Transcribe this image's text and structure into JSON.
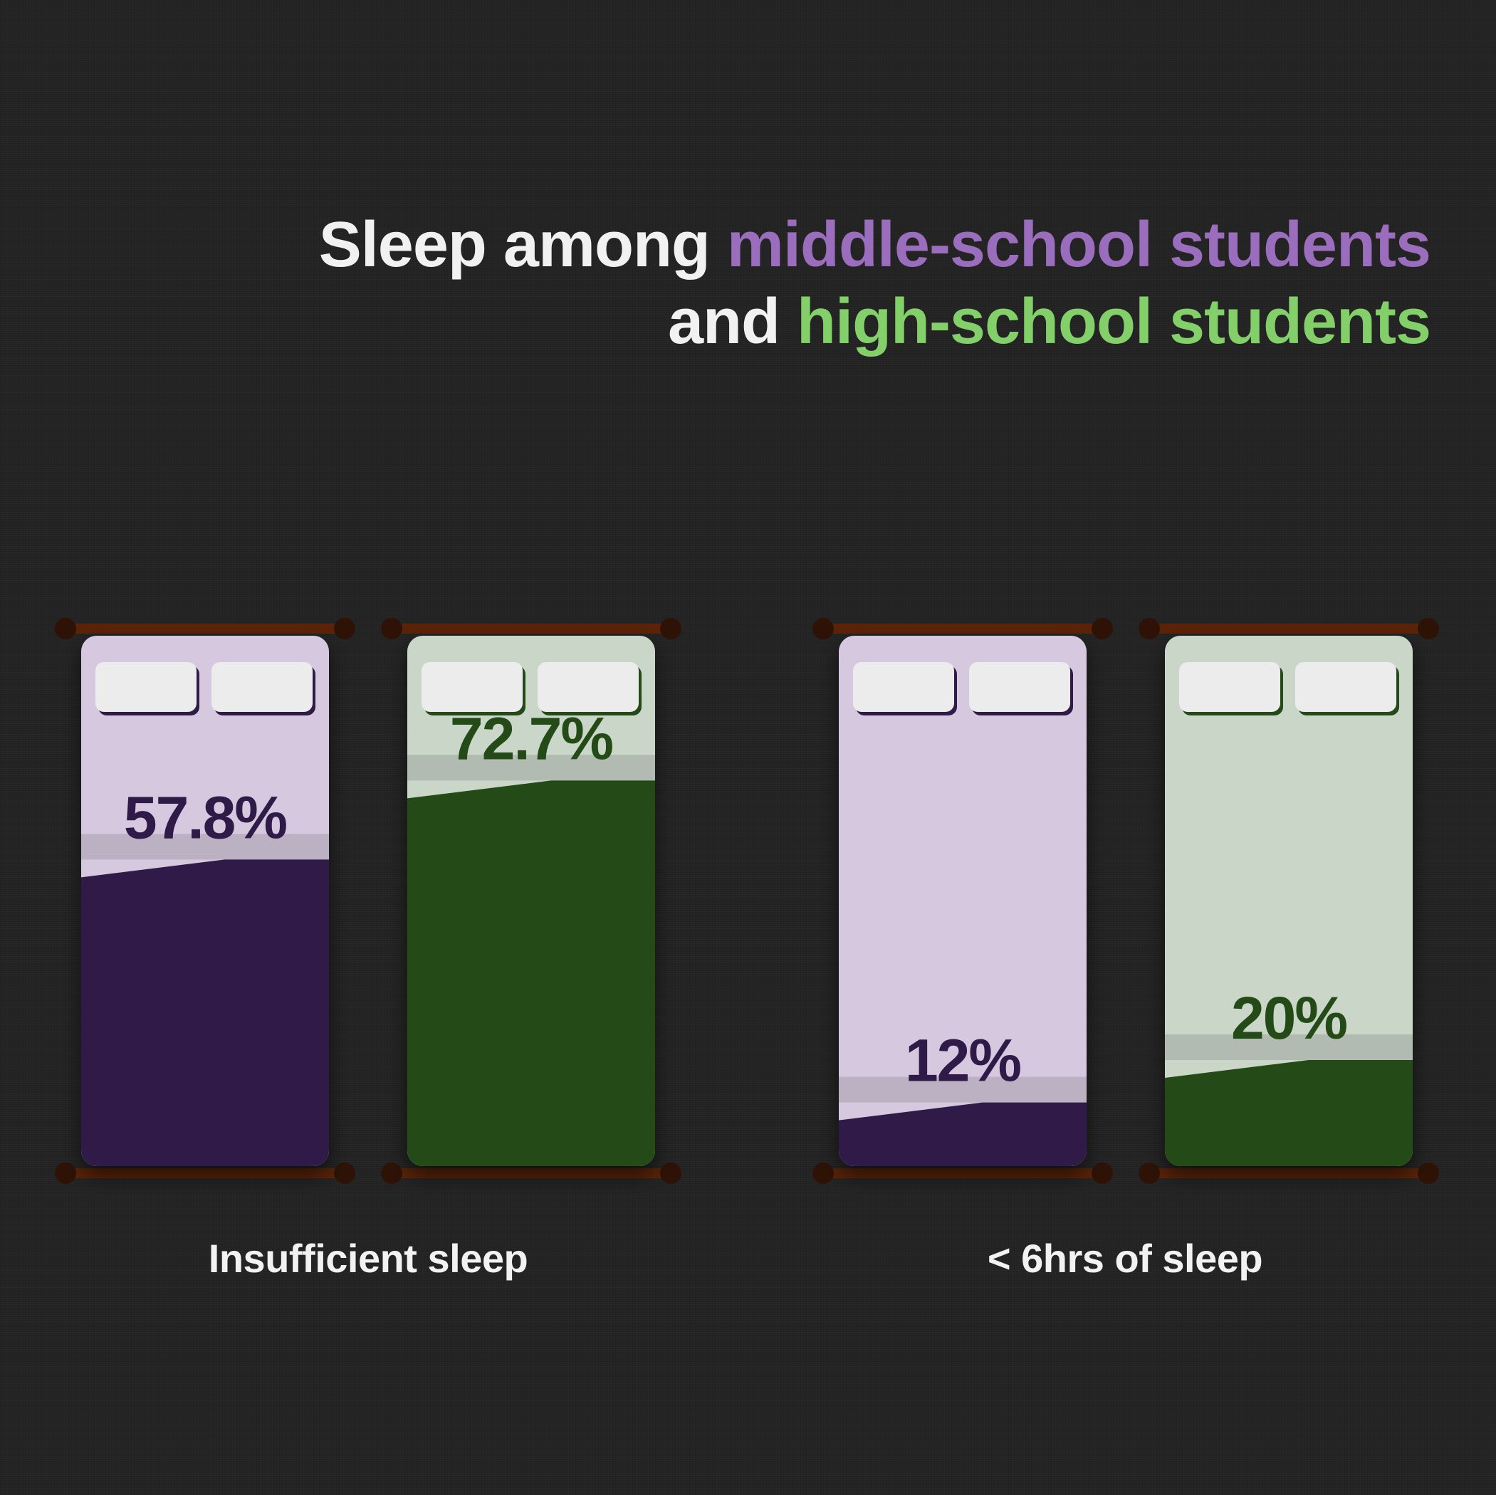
{
  "title": {
    "line1_prefix": "Sleep among ",
    "line1_highlight": "middle-school students",
    "line2_prefix": "and ",
    "line2_highlight": "high-school students"
  },
  "colors": {
    "background": "#232323",
    "middle_school_accent": "#9b6dbd",
    "high_school_accent": "#83d06b",
    "middle_school_sheet": "#d6c8df",
    "middle_school_fill": "#2f1a48",
    "high_school_sheet": "#c9d6c8",
    "high_school_fill": "#234a17",
    "bed_frame": "#5a2307",
    "pillow": "#ececec"
  },
  "chart_data": {
    "type": "bar",
    "title": "Sleep among middle-school students and high-school students",
    "categories": [
      "Insufficient sleep",
      "< 6hrs of sleep"
    ],
    "series": [
      {
        "name": "middle-school students",
        "values": [
          57.8,
          12
        ],
        "labels": [
          "57.8%",
          "12%"
        ]
      },
      {
        "name": "high-school students",
        "values": [
          72.7,
          20
        ],
        "labels": [
          "72.7%",
          "20%"
        ]
      }
    ],
    "ylim": [
      0,
      100
    ],
    "grid": false
  }
}
